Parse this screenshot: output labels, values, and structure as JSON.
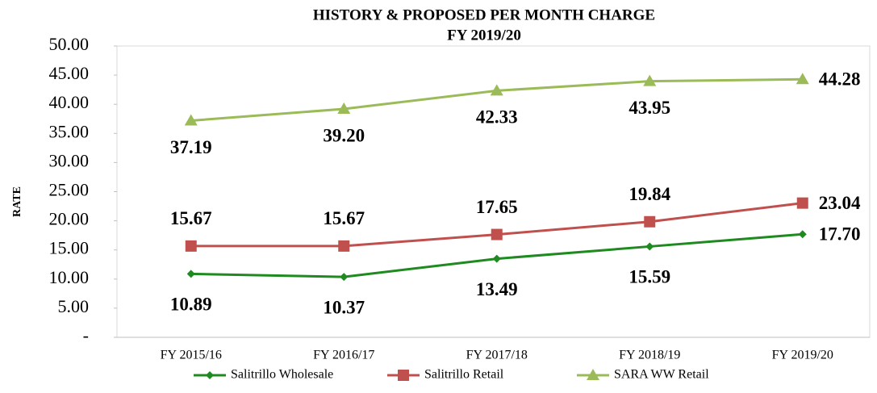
{
  "chart_data": {
    "type": "line",
    "title": "HISTORY & PROPOSED PER MONTH CHARGE",
    "subtitle": "FY 2019/20",
    "y_label": "RATE",
    "categories": [
      "FY 2015/16",
      "FY 2016/17",
      "FY 2017/18",
      "FY 2018/19",
      "FY 2019/20"
    ],
    "series": [
      {
        "name": "Salitrillo Wholesale",
        "color": "#1f8a1f",
        "marker": "diamond",
        "values": [
          10.89,
          10.37,
          13.49,
          15.59,
          17.7
        ],
        "value_labels": [
          "10.89",
          "10.37",
          "13.49",
          "15.59",
          "17.70"
        ]
      },
      {
        "name": "Salitrillo Retail",
        "color": "#c0504d",
        "marker": "square",
        "values": [
          15.67,
          15.67,
          17.65,
          19.84,
          23.04
        ],
        "value_labels": [
          "15.67",
          "15.67",
          "17.65",
          "19.84",
          "23.04"
        ]
      },
      {
        "name": "SARA WW Retail",
        "color": "#9bbb59",
        "marker": "triangle",
        "values": [
          37.19,
          39.2,
          42.33,
          43.95,
          44.28
        ],
        "value_labels": [
          "37.19",
          "39.20",
          "42.33",
          "43.95",
          "44.28"
        ]
      }
    ],
    "ylim": [
      0,
      50
    ],
    "yticks": [
      {
        "value": 0,
        "label": "-"
      },
      {
        "value": 5,
        "label": "5.00"
      },
      {
        "value": 10,
        "label": "10.00"
      },
      {
        "value": 15,
        "label": "15.00"
      },
      {
        "value": 20,
        "label": "20.00"
      },
      {
        "value": 25,
        "label": "25.00"
      },
      {
        "value": 30,
        "label": "30.00"
      },
      {
        "value": 35,
        "label": "35.00"
      },
      {
        "value": 40,
        "label": "40.00"
      },
      {
        "value": 45,
        "label": "45.00"
      },
      {
        "value": 50,
        "label": "50.00"
      }
    ],
    "legend": "bottom"
  }
}
